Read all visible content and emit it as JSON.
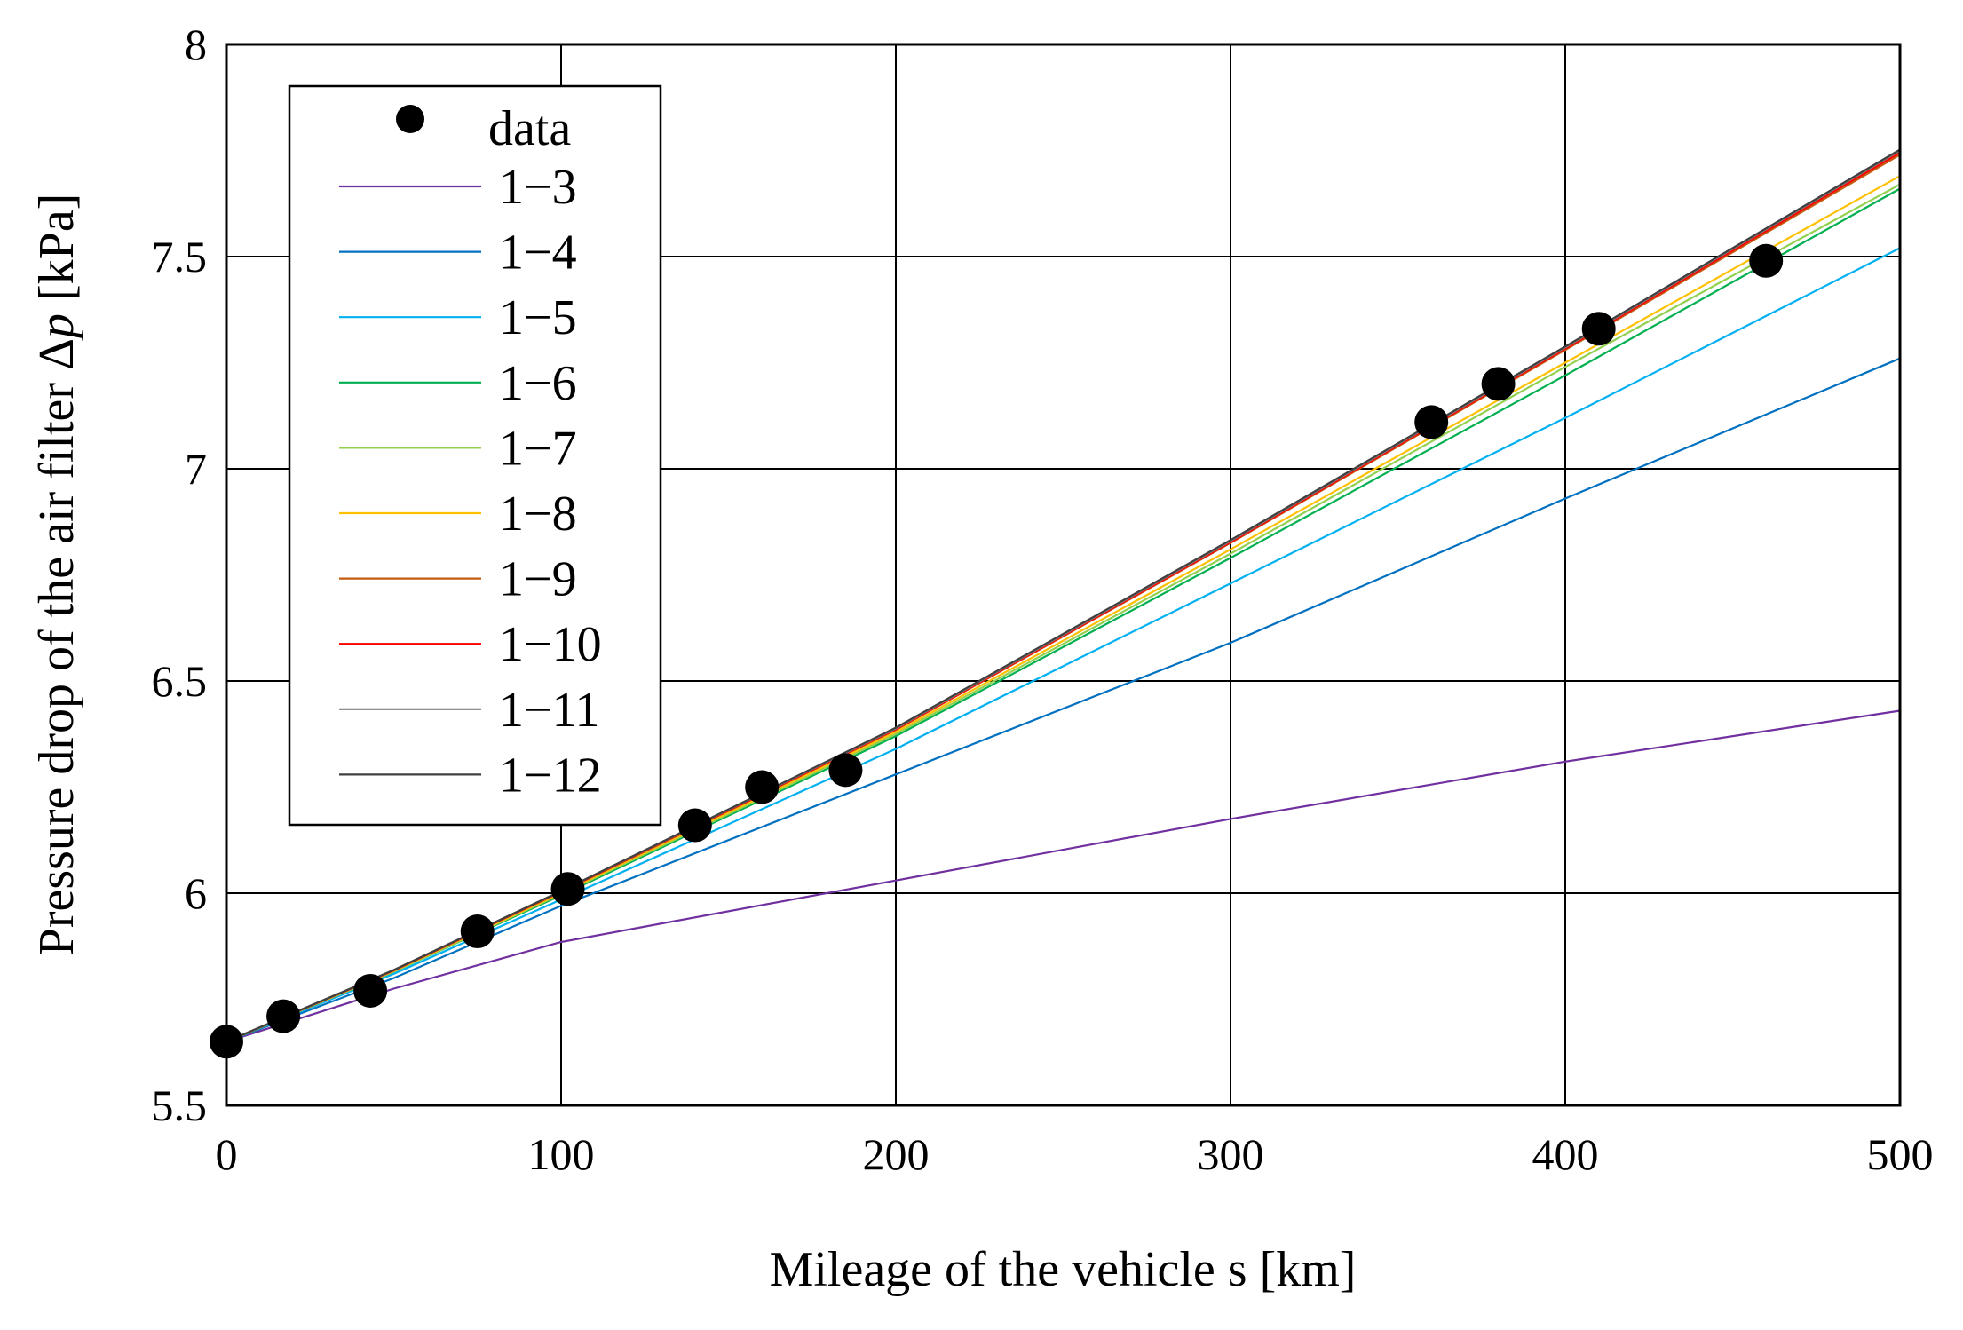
{
  "chart_data": {
    "type": "line",
    "title": "",
    "xlabel": "Mileage of the vehicle s [km]",
    "ylabel_prefix": "Pressure drop of the air filter Δ",
    "ylabel_var": "p",
    "ylabel_suffix": " [kPa]",
    "xlim": [
      0,
      500
    ],
    "ylim": [
      5.5,
      8
    ],
    "xticks": [
      0,
      100,
      200,
      300,
      400,
      500
    ],
    "yticks": [
      5.5,
      6,
      6.5,
      7,
      7.5,
      8
    ],
    "x_tick_labels": [
      "0",
      "100",
      "200",
      "300",
      "400",
      "500"
    ],
    "y_tick_labels": [
      "5.5",
      "6",
      "6.5",
      "7",
      "7.5",
      "8"
    ],
    "grid": true,
    "legend_position": "top-left",
    "data_points": {
      "name": "data",
      "color": "#000000",
      "x": [
        0,
        17,
        43,
        75,
        102,
        140,
        160,
        185,
        360,
        380,
        410,
        460
      ],
      "y": [
        5.65,
        5.71,
        5.77,
        5.91,
        6.01,
        6.16,
        6.25,
        6.29,
        7.11,
        7.2,
        7.33,
        7.49
      ]
    },
    "series": [
      {
        "name": "1−3",
        "color": "#7030A0",
        "x": [
          0,
          50,
          100,
          200,
          300,
          400,
          500
        ],
        "y": [
          5.65,
          5.775,
          5.885,
          6.03,
          6.175,
          6.31,
          6.43
        ]
      },
      {
        "name": "1−4",
        "color": "#0070C0",
        "x": [
          0,
          50,
          100,
          200,
          300,
          400,
          500
        ],
        "y": [
          5.65,
          5.8,
          5.97,
          6.28,
          6.59,
          6.93,
          7.26
        ]
      },
      {
        "name": "1−5",
        "color": "#00B0F0",
        "x": [
          0,
          50,
          100,
          200,
          300,
          400,
          500
        ],
        "y": [
          5.65,
          5.81,
          5.985,
          6.34,
          6.73,
          7.12,
          7.52
        ]
      },
      {
        "name": "1−6",
        "color": "#00B050",
        "x": [
          0,
          50,
          100,
          200,
          300,
          400,
          500
        ],
        "y": [
          5.65,
          5.815,
          5.995,
          6.37,
          6.79,
          7.22,
          7.66
        ]
      },
      {
        "name": "1−7",
        "color": "#92D050",
        "x": [
          0,
          50,
          100,
          200,
          300,
          400,
          500
        ],
        "y": [
          5.65,
          5.815,
          5.998,
          6.375,
          6.8,
          7.24,
          7.67
        ]
      },
      {
        "name": "1−8",
        "color": "#FFC000",
        "x": [
          0,
          50,
          100,
          200,
          300,
          400,
          500
        ],
        "y": [
          5.65,
          5.817,
          6.0,
          6.38,
          6.81,
          7.25,
          7.69
        ]
      },
      {
        "name": "1−9",
        "color": "#C55A11",
        "x": [
          0,
          50,
          100,
          200,
          300,
          400,
          500
        ],
        "y": [
          5.65,
          5.818,
          6.003,
          6.385,
          6.825,
          7.28,
          7.74
        ]
      },
      {
        "name": "1−10",
        "color": "#FF0000",
        "x": [
          0,
          50,
          100,
          200,
          300,
          400,
          500
        ],
        "y": [
          5.65,
          5.818,
          6.004,
          6.386,
          6.827,
          7.283,
          7.745
        ]
      },
      {
        "name": "1−11",
        "color": "#808080",
        "x": [
          0,
          50,
          100,
          200,
          300,
          400,
          500
        ],
        "y": [
          5.65,
          5.819,
          6.005,
          6.388,
          6.83,
          7.286,
          7.75
        ]
      },
      {
        "name": "1−12",
        "color": "#404040",
        "x": [
          0,
          50,
          100,
          200,
          300,
          400,
          500
        ],
        "y": [
          5.65,
          5.819,
          6.005,
          6.39,
          6.832,
          7.288,
          7.752
        ]
      }
    ]
  }
}
